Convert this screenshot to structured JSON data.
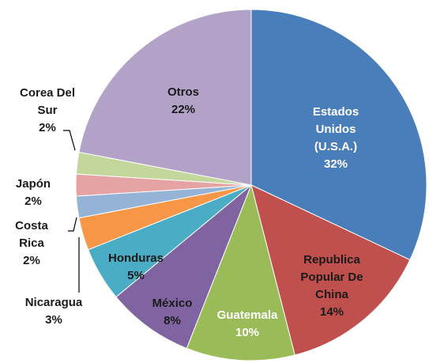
{
  "chart_data": {
    "type": "pie",
    "categories": [
      "Estados Unidos (U.S.A.)",
      "Republica Popular De China",
      "Guatemala",
      "México",
      "Honduras",
      "Nicaragua",
      "Costa Rica",
      "Japón",
      "Corea Del Sur",
      "Otros"
    ],
    "values": [
      32,
      14,
      10,
      8,
      5,
      3,
      2,
      2,
      2,
      22
    ],
    "value_labels": [
      "32%",
      "14%",
      "10%",
      "8%",
      "5%",
      "3%",
      "2%",
      "2%",
      "2%",
      "22%"
    ],
    "colors": [
      "#4a7ebb",
      "#c0504d",
      "#9bbb59",
      "#8064a2",
      "#4bacc6",
      "#f79646",
      "#95b3d7",
      "#e6a3a3",
      "#c3d69b",
      "#b3a2c7"
    ]
  }
}
